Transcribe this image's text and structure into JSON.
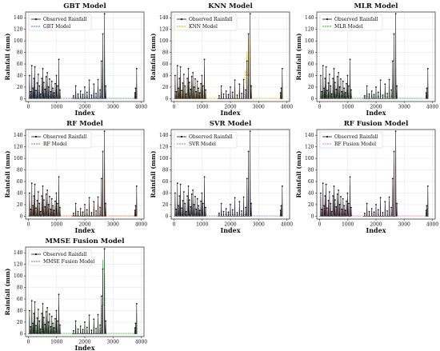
{
  "figure": {
    "colors": {
      "observed": "#111111",
      "GBT": "#4472c4",
      "KNN": "#e0a800",
      "MLR": "#2e9e2e",
      "RF": "#e8622a",
      "SVR": "#8e7cc3",
      "RF_Fusion": "#e07bb5",
      "MMSE_Fusion": "#3aa63a"
    }
  },
  "chart_data": [
    {
      "type": "line",
      "title": "GBT Model",
      "xlabel": "Index",
      "ylabel": "Rainfall (mm)",
      "xlim": [
        -100,
        4100
      ],
      "ylim": [
        -5,
        150
      ],
      "xticks": [
        "0",
        "1000",
        "2000",
        "3000",
        "4000"
      ],
      "yticks": [
        "0",
        "20",
        "40",
        "60",
        "80",
        "100",
        "120",
        "140"
      ],
      "grid": true,
      "legend_position": "top-left",
      "model_key": "GBT",
      "legend": [
        "Observed Rainfall",
        "GBT Model"
      ],
      "series": [
        {
          "name": "Observed Rainfall",
          "style": "solid-with-markers"
        },
        {
          "name": "GBT Model",
          "style": "dashed"
        }
      ]
    },
    {
      "type": "line",
      "title": "KNN Model",
      "xlabel": "Index",
      "ylabel": "Rainfall (mm)",
      "xlim": [
        -100,
        4100
      ],
      "ylim": [
        -5,
        150
      ],
      "xticks": [
        "0",
        "1000",
        "2000",
        "3000",
        "4000"
      ],
      "yticks": [
        "0",
        "20",
        "40",
        "60",
        "80",
        "100",
        "120",
        "140"
      ],
      "grid": true,
      "legend_position": "top-left",
      "model_key": "KNN",
      "legend": [
        "Observed Rainfall",
        "KNN Model"
      ],
      "series": [
        {
          "name": "Observed Rainfall",
          "style": "solid-with-markers"
        },
        {
          "name": "KNN Model",
          "style": "dashed"
        }
      ]
    },
    {
      "type": "line",
      "title": "MLR Model",
      "xlabel": "Index",
      "ylabel": "Rainfall (mm)",
      "xlim": [
        -100,
        4100
      ],
      "ylim": [
        -5,
        150
      ],
      "xticks": [
        "0",
        "1000",
        "2000",
        "3000",
        "4000"
      ],
      "yticks": [
        "0",
        "20",
        "40",
        "60",
        "80",
        "100",
        "120",
        "140"
      ],
      "grid": true,
      "legend_position": "top-left",
      "model_key": "MLR",
      "legend": [
        "Observed Rainfall",
        "MLR Model"
      ],
      "series": [
        {
          "name": "Observed Rainfall",
          "style": "solid-with-markers"
        },
        {
          "name": "MLR Model",
          "style": "dashed"
        }
      ]
    },
    {
      "type": "line",
      "title": "RF Model",
      "xlabel": "Index",
      "ylabel": "Rainfall (mm)",
      "xlim": [
        -100,
        4100
      ],
      "ylim": [
        -5,
        150
      ],
      "xticks": [
        "0",
        "1000",
        "2000",
        "3000",
        "4000"
      ],
      "yticks": [
        "0",
        "20",
        "40",
        "60",
        "80",
        "100",
        "120",
        "140"
      ],
      "grid": true,
      "legend_position": "top-left",
      "model_key": "RF",
      "legend": [
        "Observed Rainfall",
        "RF Model"
      ],
      "series": [
        {
          "name": "Observed Rainfall",
          "style": "solid-with-markers"
        },
        {
          "name": "RF Model",
          "style": "dashed"
        }
      ]
    },
    {
      "type": "line",
      "title": "SVR Model",
      "xlabel": "Index",
      "ylabel": "Rainfall (mm)",
      "xlim": [
        -100,
        4100
      ],
      "ylim": [
        -5,
        150
      ],
      "xticks": [
        "0",
        "1000",
        "2000",
        "3000",
        "4000"
      ],
      "yticks": [
        "0",
        "20",
        "40",
        "60",
        "80",
        "100",
        "120",
        "140"
      ],
      "grid": true,
      "legend_position": "top-left",
      "model_key": "SVR",
      "legend": [
        "Observed Rainfall",
        "SVR Model"
      ],
      "series": [
        {
          "name": "Observed Rainfall",
          "style": "solid-with-markers"
        },
        {
          "name": "SVR Model",
          "style": "dashed"
        }
      ]
    },
    {
      "type": "line",
      "title": "RF Fusion Model",
      "xlabel": "Index",
      "ylabel": "Rainfall (mm)",
      "xlim": [
        -100,
        4100
      ],
      "ylim": [
        -5,
        150
      ],
      "xticks": [
        "0",
        "1000",
        "2000",
        "3000",
        "4000"
      ],
      "yticks": [
        "0",
        "20",
        "40",
        "60",
        "80",
        "100",
        "120",
        "140"
      ],
      "grid": true,
      "legend_position": "top-left",
      "model_key": "RF_Fusion",
      "legend": [
        "Observed Rainfall",
        "RF Fusion Model"
      ],
      "series": [
        {
          "name": "Observed Rainfall",
          "style": "solid-with-markers"
        },
        {
          "name": "RF Fusion Model",
          "style": "dashed"
        }
      ]
    },
    {
      "type": "line",
      "title": "MMSE Fusion Model",
      "xlabel": "Index",
      "ylabel": "Rainfall (mm)",
      "xlim": [
        -100,
        4100
      ],
      "ylim": [
        -5,
        150
      ],
      "xticks": [
        "0",
        "1000",
        "2000",
        "3000",
        "4000"
      ],
      "yticks": [
        "0",
        "20",
        "40",
        "60",
        "80",
        "100",
        "120",
        "140"
      ],
      "grid": true,
      "legend_position": "top-left",
      "model_key": "MMSE_Fusion",
      "legend": [
        "Observed Rainfall",
        "MMSE Fusion Model"
      ],
      "series": [
        {
          "name": "Observed Rainfall",
          "style": "solid-with-markers"
        },
        {
          "name": "MMSE Fusion Model",
          "style": "dashed"
        }
      ]
    }
  ],
  "observed_series": {
    "segments_index": [
      [
        0,
        1150
      ],
      [
        1550,
        2750
      ],
      [
        3750,
        3850
      ]
    ],
    "peaks": [
      {
        "x": 40,
        "y": 40
      },
      {
        "x": 80,
        "y": 12
      },
      {
        "x": 120,
        "y": 57
      },
      {
        "x": 160,
        "y": 18
      },
      {
        "x": 190,
        "y": 35
      },
      {
        "x": 230,
        "y": 55
      },
      {
        "x": 270,
        "y": 14
      },
      {
        "x": 310,
        "y": 27
      },
      {
        "x": 350,
        "y": 42
      },
      {
        "x": 390,
        "y": 22
      },
      {
        "x": 430,
        "y": 8
      },
      {
        "x": 470,
        "y": 35
      },
      {
        "x": 510,
        "y": 52
      },
      {
        "x": 550,
        "y": 28
      },
      {
        "x": 590,
        "y": 16
      },
      {
        "x": 630,
        "y": 38
      },
      {
        "x": 670,
        "y": 45
      },
      {
        "x": 710,
        "y": 20
      },
      {
        "x": 750,
        "y": 34
      },
      {
        "x": 790,
        "y": 12
      },
      {
        "x": 830,
        "y": 30
      },
      {
        "x": 870,
        "y": 18
      },
      {
        "x": 910,
        "y": 10
      },
      {
        "x": 950,
        "y": 26
      },
      {
        "x": 990,
        "y": 40
      },
      {
        "x": 1030,
        "y": 22
      },
      {
        "x": 1080,
        "y": 68
      },
      {
        "x": 1120,
        "y": 15
      },
      {
        "x": 1600,
        "y": 5
      },
      {
        "x": 1680,
        "y": 22
      },
      {
        "x": 1760,
        "y": 8
      },
      {
        "x": 1850,
        "y": 13
      },
      {
        "x": 1930,
        "y": 7
      },
      {
        "x": 2000,
        "y": 20
      },
      {
        "x": 2080,
        "y": 11
      },
      {
        "x": 2160,
        "y": 32
      },
      {
        "x": 2240,
        "y": 6
      },
      {
        "x": 2320,
        "y": 25
      },
      {
        "x": 2400,
        "y": 9
      },
      {
        "x": 2470,
        "y": 33
      },
      {
        "x": 2540,
        "y": 15
      },
      {
        "x": 2590,
        "y": 65
      },
      {
        "x": 2640,
        "y": 112
      },
      {
        "x": 2700,
        "y": 147
      },
      {
        "x": 2740,
        "y": 22
      },
      {
        "x": 3780,
        "y": 10
      },
      {
        "x": 3800,
        "y": 18
      },
      {
        "x": 3840,
        "y": 52
      }
    ]
  }
}
